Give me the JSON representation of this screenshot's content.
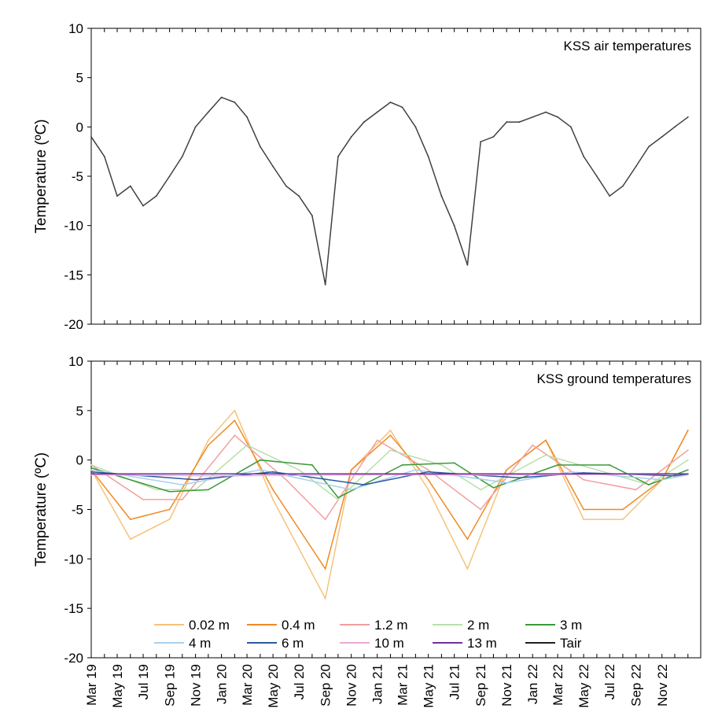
{
  "chart_data": [
    {
      "type": "line",
      "title": "KSS air temperatures",
      "ylabel": "Temperature (ºC)",
      "xlabel": "",
      "ylim": [
        -20,
        10
      ],
      "yticks": [
        10,
        5,
        0,
        -5,
        -10,
        -15,
        -20
      ],
      "xlim": [
        "2019-03-01",
        "2023-01-31"
      ],
      "grid": false,
      "series": [
        {
          "color": "#404040",
          "x": [
            "2019-03-01",
            "2019-04-01",
            "2019-05-01",
            "2019-06-01",
            "2019-07-01",
            "2019-08-01",
            "2019-09-01",
            "2019-10-01",
            "2019-11-01",
            "2019-12-01",
            "2020-01-01",
            "2020-02-01",
            "2020-03-01",
            "2020-04-01",
            "2020-05-01",
            "2020-06-01",
            "2020-07-01",
            "2020-08-01",
            "2020-09-01",
            "2020-10-01",
            "2020-11-01",
            "2020-12-01",
            "2021-01-01",
            "2021-02-01",
            "2021-03-01",
            "2021-04-01",
            "2021-05-01",
            "2021-06-01",
            "2021-07-01",
            "2021-08-01",
            "2021-09-01",
            "2021-10-01",
            "2021-11-01",
            "2021-12-01",
            "2022-01-01",
            "2022-02-01",
            "2022-03-01",
            "2022-04-01",
            "2022-05-01",
            "2022-06-01",
            "2022-07-01",
            "2022-08-01",
            "2022-09-01",
            "2022-10-01",
            "2022-11-01",
            "2022-12-01",
            "2023-01-01"
          ],
          "y": [
            -1,
            -3,
            -7,
            -6,
            -8,
            -7,
            -5,
            -3,
            0,
            1.5,
            3,
            2.5,
            1,
            -2,
            -4,
            -6,
            -7,
            -9,
            -16,
            -3,
            -1,
            0.5,
            1.5,
            2.5,
            2,
            0,
            -3,
            -7,
            -10,
            -14,
            -1.5,
            -1,
            0.5,
            0.5,
            1,
            1.5,
            1,
            0,
            -3,
            -5,
            -7,
            -6,
            -4,
            -2,
            -1,
            0,
            1
          ]
        }
      ]
    },
    {
      "type": "line",
      "title": "KSS ground temperatures",
      "ylabel": "Temperature (ºC)",
      "xlabel": "",
      "ylim": [
        -20,
        10
      ],
      "yticks": [
        10,
        5,
        0,
        -5,
        -10,
        -15,
        -20
      ],
      "xlim": [
        "2019-03-01",
        "2023-01-31"
      ],
      "grid": false,
      "legend": "bottom, 2 rows",
      "x_ticklabels": [
        "Mar 19",
        "May 19",
        "Jul 19",
        "Sep 19",
        "Nov 19",
        "Jan 20",
        "Mar 20",
        "May 20",
        "Jul 20",
        "Sep 20",
        "Nov 20",
        "Jan 21",
        "Mar 21",
        "May 21",
        "Jul 21",
        "Sep 21",
        "Nov 21",
        "Jan 22",
        "Mar 22",
        "May 22",
        "Jul 22",
        "Sep 22",
        "Nov 22"
      ],
      "x_tick_dates": [
        "2019-03-01",
        "2019-05-01",
        "2019-07-01",
        "2019-09-01",
        "2019-11-01",
        "2020-01-01",
        "2020-03-01",
        "2020-05-01",
        "2020-07-01",
        "2020-09-01",
        "2020-11-01",
        "2021-01-01",
        "2021-03-01",
        "2021-05-01",
        "2021-07-01",
        "2021-09-01",
        "2021-11-01",
        "2022-01-01",
        "2022-03-01",
        "2022-05-01",
        "2022-07-01",
        "2022-09-01",
        "2022-11-01"
      ],
      "series": [
        {
          "name": "0.02 m",
          "color": "#f7c27a",
          "x": [
            "2019-03-01",
            "2019-06-01",
            "2019-09-01",
            "2019-12-01",
            "2020-02-01",
            "2020-05-01",
            "2020-09-01",
            "2020-11-01",
            "2021-02-01",
            "2021-05-01",
            "2021-08-01",
            "2021-11-01",
            "2022-02-01",
            "2022-05-01",
            "2022-08-01",
            "2022-11-01",
            "2023-01-01"
          ],
          "y": [
            -1,
            -8,
            -6,
            2,
            5,
            -4,
            -14,
            -1,
            3,
            -3,
            -11,
            -1,
            2,
            -6,
            -6,
            -2,
            3
          ]
        },
        {
          "name": "0.4 m",
          "color": "#f08a24",
          "x": [
            "2019-03-01",
            "2019-06-01",
            "2019-09-01",
            "2019-12-01",
            "2020-02-01",
            "2020-05-01",
            "2020-09-01",
            "2020-11-01",
            "2021-02-01",
            "2021-05-01",
            "2021-08-01",
            "2021-11-01",
            "2022-02-01",
            "2022-05-01",
            "2022-08-01",
            "2022-11-01",
            "2023-01-01"
          ],
          "y": [
            -1,
            -6,
            -5,
            1.5,
            4,
            -3,
            -11,
            -1,
            2.5,
            -2,
            -8,
            -1,
            2,
            -5,
            -5,
            -2,
            3
          ]
        },
        {
          "name": "1.2 m",
          "color": "#f0a0a0",
          "x": [
            "2019-03-01",
            "2019-07-01",
            "2019-10-01",
            "2020-02-01",
            "2020-06-01",
            "2020-09-01",
            "2021-01-01",
            "2021-05-01",
            "2021-09-01",
            "2022-01-01",
            "2022-05-01",
            "2022-09-01",
            "2023-01-01"
          ],
          "y": [
            -0.5,
            -4,
            -4,
            2.5,
            -2,
            -6,
            2,
            -1,
            -5,
            1.5,
            -2,
            -3,
            1
          ]
        },
        {
          "name": "2 m",
          "color": "#b8e0a8",
          "x": [
            "2019-03-01",
            "2019-08-01",
            "2019-11-01",
            "2020-03-01",
            "2020-07-01",
            "2020-10-01",
            "2021-02-01",
            "2021-06-01",
            "2021-09-01",
            "2022-02-01",
            "2022-06-01",
            "2022-10-01",
            "2023-01-01"
          ],
          "y": [
            -0.5,
            -3,
            -3,
            1.5,
            -1,
            -4,
            1,
            -0.5,
            -3,
            0.5,
            -1,
            -2.5,
            0
          ]
        },
        {
          "name": "3 m",
          "color": "#3a9a3a",
          "x": [
            "2019-03-01",
            "2019-09-01",
            "2019-12-01",
            "2020-04-01",
            "2020-08-01",
            "2020-10-01",
            "2021-03-01",
            "2021-07-01",
            "2021-10-01",
            "2022-03-01",
            "2022-07-01",
            "2022-10-01",
            "2023-01-01"
          ],
          "y": [
            -0.8,
            -3.2,
            -3,
            0,
            -0.5,
            -3.8,
            -0.5,
            -0.3,
            -2.8,
            -0.5,
            -0.5,
            -2.5,
            -1
          ]
        },
        {
          "name": "4 m",
          "color": "#a8d0f0",
          "x": [
            "2019-03-01",
            "2019-10-01",
            "2020-04-01",
            "2020-11-01",
            "2021-04-01",
            "2021-11-01",
            "2022-04-01",
            "2022-11-01",
            "2023-01-01"
          ],
          "y": [
            -1,
            -2.5,
            -1,
            -3,
            -1,
            -2.3,
            -1.2,
            -2,
            -1.5
          ]
        },
        {
          "name": "6 m",
          "color": "#2a5aa0",
          "x": [
            "2019-03-01",
            "2019-11-01",
            "2020-05-01",
            "2020-12-01",
            "2021-05-01",
            "2021-12-01",
            "2022-05-01",
            "2022-12-01",
            "2023-01-01"
          ],
          "y": [
            -1.2,
            -2,
            -1.2,
            -2.5,
            -1.2,
            -1.8,
            -1.3,
            -1.6,
            -1.4
          ]
        },
        {
          "name": "10 m",
          "color": "#e8a8d8",
          "x": [
            "2019-03-01",
            "2020-01-01",
            "2021-01-01",
            "2022-01-01",
            "2023-01-01"
          ],
          "y": [
            -1.5,
            -1.6,
            -1.5,
            -1.5,
            -1.4
          ]
        },
        {
          "name": "13 m",
          "color": "#7030a0",
          "x": [
            "2019-03-01",
            "2020-01-01",
            "2021-01-01",
            "2022-01-01",
            "2023-01-01"
          ],
          "y": [
            -1.4,
            -1.4,
            -1.4,
            -1.4,
            -1.4
          ]
        },
        {
          "name": "Tair",
          "color": "#202020",
          "x": [],
          "y": []
        }
      ]
    }
  ]
}
